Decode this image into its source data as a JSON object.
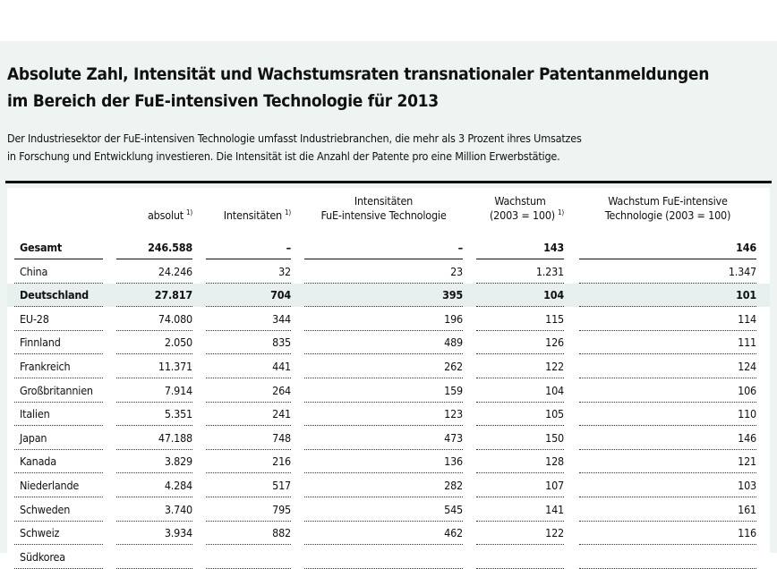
{
  "header": {
    "title": [
      "Absolute Zahl, Intensität und Wachstumsraten transnationaler Patentanmeldungen",
      "im Bereich der FuE-intensiven Technologie für 2013"
    ],
    "subtitle": [
      "Der Industriesektor der FuE-intensiven Technologie umfasst Industriebranchen, die mehr als 3 Prozent ihres Umsatzes",
      "in Forschung und Entwicklung investieren. Die Intensität ist die Anzahl der Patente pro eine Million Erwerbstätige."
    ]
  },
  "table": {
    "columns": [
      {
        "lines": [
          "absolut"
        ],
        "note": "1)"
      },
      {
        "lines": [
          "Intensitäten"
        ],
        "note": "1)"
      },
      {
        "lines": [
          "Intensitäten",
          "FuE-intensive Technologie"
        ]
      },
      {
        "lines": [
          "Wachstum",
          "(2003 = 100)"
        ],
        "note": "1)"
      },
      {
        "lines": [
          "Wachstum FuE-intensive",
          "Technologie (2003 = 100)"
        ]
      }
    ],
    "rows": [
      {
        "cells": [
          "Gesamt",
          "246.588",
          "–",
          "–",
          "143",
          "146"
        ],
        "bold": true
      },
      {
        "cells": [
          "China",
          "24.246",
          "32",
          "23",
          "1.231",
          "1.347"
        ]
      },
      {
        "cells": [
          "Deutschland",
          "27.817",
          "704",
          "395",
          "104",
          "101"
        ],
        "bold": true,
        "highlight": true
      },
      {
        "cells": [
          "EU-28",
          "74.080",
          "344",
          "196",
          "115",
          "114"
        ]
      },
      {
        "cells": [
          "Finnland",
          "2.050",
          "835",
          "489",
          "126",
          "111"
        ]
      },
      {
        "cells": [
          "Frankreich",
          "11.371",
          "441",
          "262",
          "122",
          "124"
        ]
      },
      {
        "cells": [
          "Großbritannien",
          "7.914",
          "264",
          "159",
          "104",
          "106"
        ]
      },
      {
        "cells": [
          "Italien",
          "5.351",
          "241",
          "123",
          "105",
          "110"
        ]
      },
      {
        "cells": [
          "Japan",
          "47.188",
          "748",
          "473",
          "150",
          "146"
        ]
      },
      {
        "cells": [
          "Kanada",
          "3.829",
          "216",
          "136",
          "128",
          "121"
        ]
      },
      {
        "cells": [
          "Niederlande",
          "4.284",
          "517",
          "282",
          "107",
          "103"
        ]
      },
      {
        "cells": [
          "Schweden",
          "3.740",
          "795",
          "545",
          "141",
          "161"
        ]
      },
      {
        "cells": [
          "Schweiz",
          "3.934",
          "882",
          "462",
          "122",
          "116"
        ]
      },
      {
        "cells": [
          "Südkorea"
        ]
      }
    ]
  }
}
